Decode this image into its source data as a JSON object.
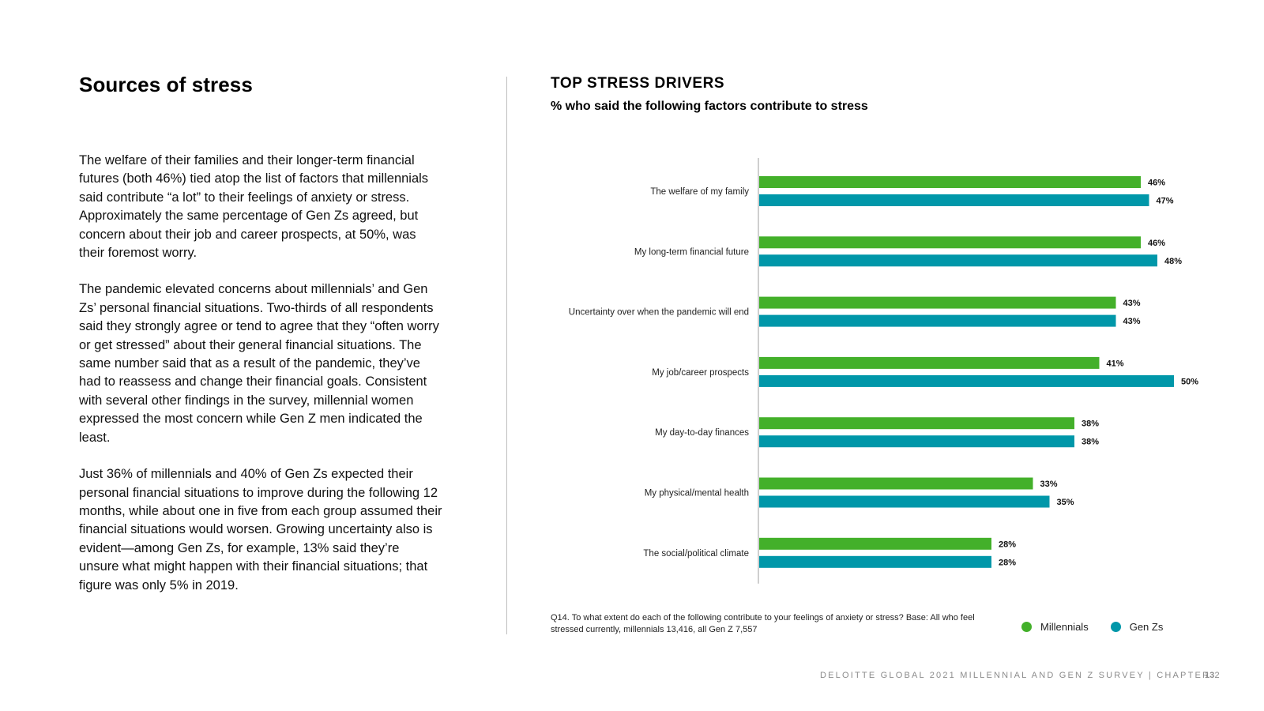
{
  "page": {
    "title": "Sources of stress",
    "paragraphs": [
      "The welfare of their families and their longer-term financial futures (both 46%) tied atop the list of factors that millennials said contribute “a lot” to their feelings of anxiety or stress. Approximately the same percentage of Gen Zs agreed, but concern about their job and career prospects, at 50%, was their foremost worry.",
      "The pandemic elevated concerns about millennials’ and Gen Zs’ personal financial situations. Two-thirds of all respondents said they strongly agree or tend to agree that they “often worry or get stressed” about their general financial situations. The same number said that as a result of the pandemic, they’ve had to reassess and change their financial goals. Consistent with several other findings in the survey, millennial women expressed the most concern while Gen Z men indicated the least.",
      "Just 36% of millennials and 40% of Gen Zs expected their personal financial situations to improve during the following 12 months, while about one in five from each group assumed their financial situations would worsen. Growing uncertainty also is evident—among Gen Zs, for example, 13% said they’re unsure what might happen with their financial situations; that figure was only 5% in 2019."
    ],
    "footnote": "Q14. To what extent do each of the following contribute to your feelings of anxiety or stress? Base: All who feel stressed currently, millennials 13,416, all Gen Z 7,557",
    "footer_text": "DELOITTE GLOBAL 2021 MILLENNIAL AND GEN Z SURVEY | CHAPTER 2",
    "page_number": "13"
  },
  "chart_data": {
    "type": "bar",
    "orientation": "horizontal",
    "title": "TOP STRESS DRIVERS",
    "subtitle": "% who said the following factors contribute to stress",
    "categories": [
      "The welfare of my family",
      "My long-term financial future",
      "Uncertainty over when the pandemic will end",
      "My job/career prospects",
      "My day-to-day finances",
      "My physical/mental health",
      "The social/political climate"
    ],
    "series": [
      {
        "name": "Millennials",
        "color": "#43b02a",
        "values": [
          46,
          46,
          43,
          41,
          38,
          33,
          28
        ]
      },
      {
        "name": "Gen Zs",
        "color": "#0097a9",
        "values": [
          47,
          48,
          43,
          50,
          38,
          35,
          28
        ]
      }
    ],
    "value_suffix": "%",
    "xlim": [
      0,
      55
    ],
    "grid": false,
    "legend_position": "bottom-right"
  }
}
